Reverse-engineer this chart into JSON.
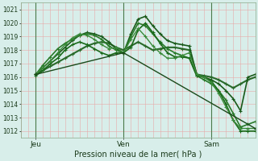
{
  "background_color": "#cce8d8",
  "plot_bg": "#d8eeea",
  "grid_color_v": "#e8a8a8",
  "grid_color_h": "#e8a8a8",
  "day_line_color": "#4a7a4a",
  "ylim": [
    1011.5,
    1021.5
  ],
  "yticks": [
    1012,
    1013,
    1014,
    1015,
    1016,
    1017,
    1018,
    1019,
    1020,
    1021
  ],
  "xlabel": "Pression niveau de la mer( hPa )",
  "xtick_labels": [
    "Jeu",
    "Ven",
    "Sam"
  ],
  "xtick_positions": [
    4,
    28,
    52
  ],
  "vline_positions": [
    4,
    28,
    52
  ],
  "xlim": [
    0,
    64
  ],
  "series": [
    {
      "x": [
        4,
        6,
        8,
        10,
        12,
        14,
        16,
        18,
        20,
        22,
        24,
        26,
        28,
        30,
        32,
        34,
        36,
        38,
        40,
        42,
        44,
        46,
        48,
        50,
        52,
        54,
        56,
        58,
        60,
        62,
        64
      ],
      "y": [
        1016.2,
        1016.5,
        1016.8,
        1017.1,
        1017.4,
        1017.7,
        1018.0,
        1018.3,
        1018.5,
        1018.6,
        1018.5,
        1018.2,
        1018.0,
        1018.3,
        1018.6,
        1018.3,
        1018.0,
        1018.1,
        1018.2,
        1018.2,
        1018.1,
        1018.0,
        1016.2,
        1016.1,
        1016.0,
        1015.8,
        1015.5,
        1015.2,
        1015.5,
        1015.8,
        1016.0
      ],
      "color": "#2a6a2a",
      "lw": 1.5,
      "marker": "+"
    },
    {
      "x": [
        4,
        6,
        8,
        10,
        12,
        14,
        16,
        18,
        20,
        22,
        24,
        26,
        28,
        30,
        32,
        34,
        36,
        38,
        40,
        42,
        44,
        46,
        48,
        50,
        52,
        54,
        56,
        58,
        60,
        62,
        64
      ],
      "y": [
        1016.2,
        1016.7,
        1017.2,
        1017.7,
        1018.2,
        1018.7,
        1019.1,
        1019.3,
        1019.2,
        1019.0,
        1018.6,
        1018.1,
        1017.8,
        1019.2,
        1020.3,
        1020.5,
        1019.8,
        1019.2,
        1018.7,
        1018.5,
        1018.4,
        1018.3,
        1016.2,
        1016.0,
        1015.8,
        1015.5,
        1015.0,
        1014.4,
        1013.5,
        1016.0,
        1016.2
      ],
      "color": "#1a5a1a",
      "lw": 1.2,
      "marker": "+"
    },
    {
      "x": [
        4,
        6,
        8,
        10,
        12,
        14,
        16,
        18,
        20,
        22,
        24,
        26,
        28,
        30,
        32,
        34,
        36,
        38,
        40,
        42,
        44,
        46,
        48,
        50,
        52,
        54,
        56,
        58,
        60,
        62,
        64
      ],
      "y": [
        1016.2,
        1016.9,
        1017.5,
        1018.1,
        1018.5,
        1018.8,
        1019.1,
        1019.2,
        1019.1,
        1018.8,
        1018.3,
        1018.0,
        1017.8,
        1019.0,
        1020.0,
        1019.8,
        1019.2,
        1018.6,
        1018.1,
        1017.8,
        1017.6,
        1017.4,
        1016.1,
        1015.8,
        1015.5,
        1015.0,
        1014.3,
        1013.3,
        1012.3,
        1012.5,
        1012.7
      ],
      "color": "#2a7a2a",
      "lw": 1.2,
      "marker": "+"
    },
    {
      "x": [
        4,
        6,
        8,
        10,
        12,
        14,
        16,
        18,
        20,
        22,
        24,
        26,
        28,
        30,
        32,
        34,
        36,
        38,
        40,
        42,
        44,
        46,
        48,
        50,
        52,
        54,
        56,
        58,
        60,
        62,
        64
      ],
      "y": [
        1016.1,
        1016.5,
        1017.0,
        1017.4,
        1018.0,
        1018.4,
        1018.6,
        1018.4,
        1018.1,
        1017.8,
        1017.6,
        1017.8,
        1017.8,
        1018.2,
        1019.5,
        1020.0,
        1019.3,
        1018.5,
        1017.8,
        1017.5,
        1017.5,
        1017.4,
        1016.1,
        1016.0,
        1015.7,
        1015.0,
        1014.0,
        1012.8,
        1012.0,
        1012.0,
        1012.0
      ],
      "color": "#1a6a1a",
      "lw": 1.2,
      "marker": "+"
    },
    {
      "x": [
        4,
        6,
        8,
        10,
        12,
        14,
        16,
        18,
        20,
        22,
        24,
        26,
        28,
        30,
        32,
        34,
        36,
        38,
        40,
        42,
        44,
        46,
        48,
        50,
        52,
        54,
        56,
        58,
        60,
        62,
        64
      ],
      "y": [
        1016.2,
        1016.7,
        1017.2,
        1017.8,
        1018.4,
        1018.9,
        1019.2,
        1019.1,
        1018.8,
        1018.4,
        1018.1,
        1018.2,
        1017.8,
        1018.8,
        1019.6,
        1019.0,
        1018.3,
        1017.8,
        1017.4,
        1017.4,
        1017.6,
        1017.8,
        1016.2,
        1016.0,
        1015.6,
        1014.8,
        1013.8,
        1012.8,
        1012.2,
        1012.2,
        1012.2
      ],
      "color": "#3a8a3a",
      "lw": 1.0,
      "marker": "+"
    },
    {
      "x": [
        4,
        28,
        64
      ],
      "y": [
        1016.2,
        1017.8,
        1012.2
      ],
      "color": "#1a4a1a",
      "lw": 1.0,
      "marker": "+"
    }
  ]
}
